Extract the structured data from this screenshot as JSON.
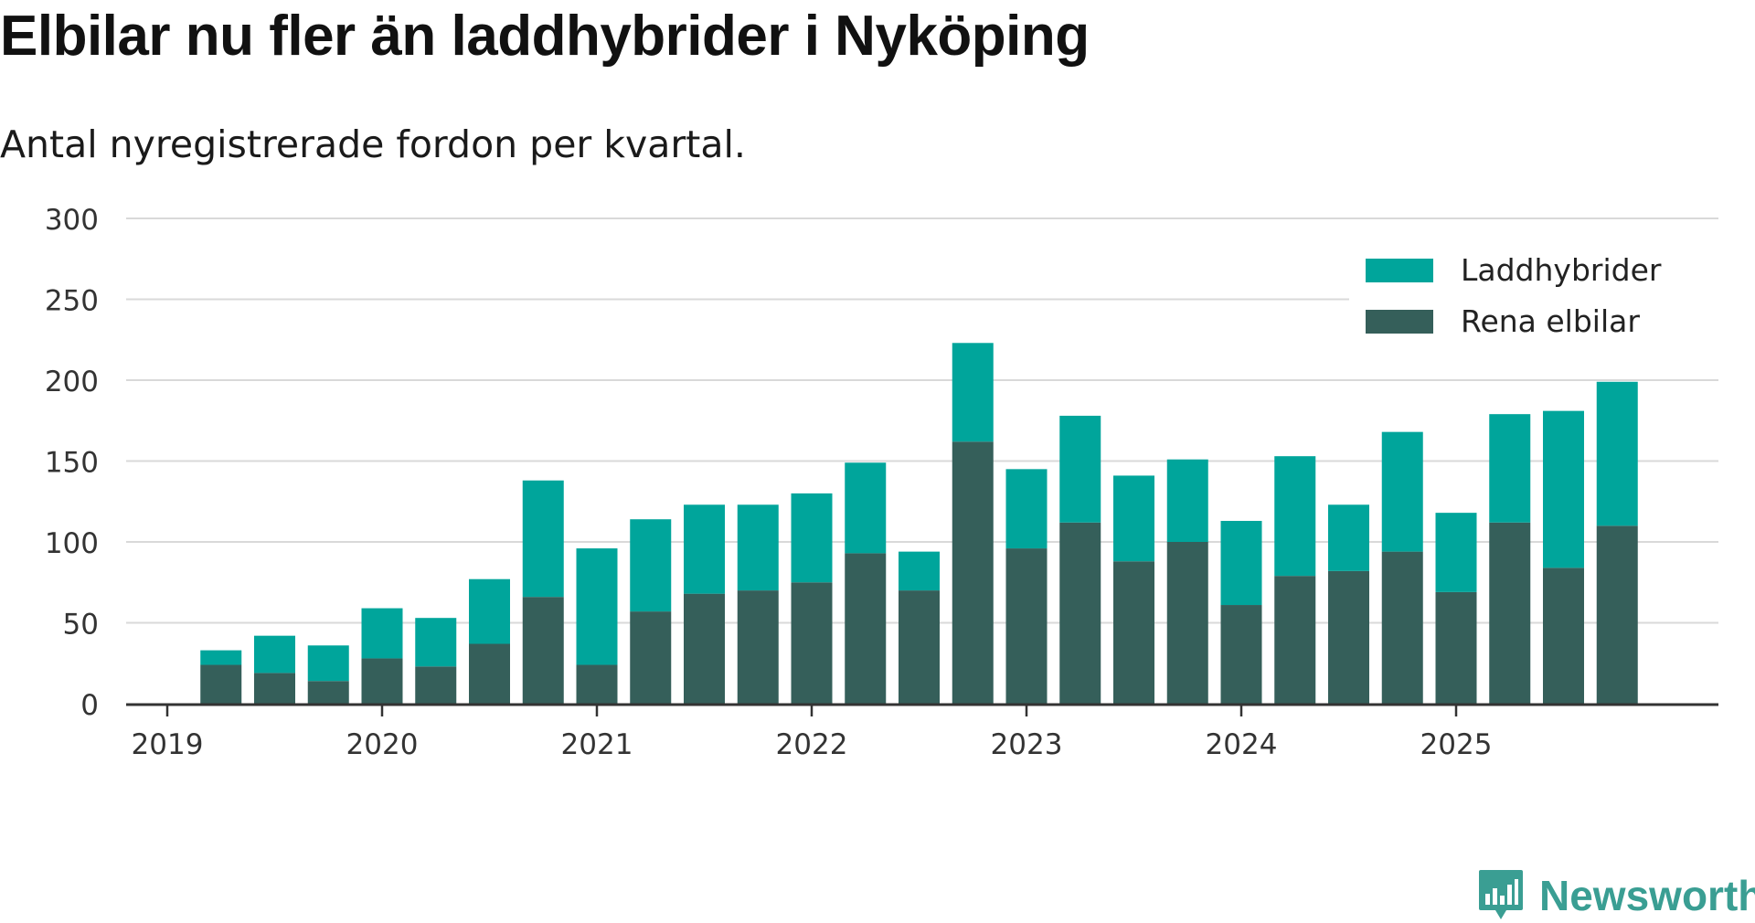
{
  "header": {
    "title": "Elbilar nu fler än laddhybrider i Nyköping",
    "subtitle": "Antal nyregistrerade fordon per kvartal."
  },
  "brand": {
    "name": "Newsworthy",
    "icon": "newsworthy-logo-icon"
  },
  "colors": {
    "plugin_hybrid": "#00a59b",
    "electric": "#355f5a",
    "grid": "#d9d9d9",
    "axis": "#333333"
  },
  "chart_data": {
    "type": "bar",
    "stacked": true,
    "title": "Elbilar nu fler än laddhybrider i Nyköping",
    "subtitle": "Antal nyregistrerade fordon per kvartal.",
    "xlabel": "",
    "ylabel": "",
    "ylim": [
      0,
      300
    ],
    "yticks": [
      0,
      50,
      100,
      150,
      200,
      250,
      300
    ],
    "grid": true,
    "legend_position": "top-right",
    "x_tick_labels": [
      "2019",
      "2020",
      "2021",
      "2022",
      "2023",
      "2024",
      "2025"
    ],
    "categories": [
      "2019 Q2",
      "2019 Q3",
      "2019 Q4",
      "2020 Q1",
      "2020 Q2",
      "2020 Q3",
      "2020 Q4",
      "2021 Q1",
      "2021 Q2",
      "2021 Q3",
      "2021 Q4",
      "2022 Q1",
      "2022 Q2",
      "2022 Q3",
      "2022 Q4",
      "2023 Q1",
      "2023 Q2",
      "2023 Q3",
      "2023 Q4",
      "2024 Q1",
      "2024 Q2",
      "2024 Q3",
      "2024 Q4",
      "2025 Q1",
      "2025 Q2",
      "2025 Q3",
      "2025 Q4"
    ],
    "series": [
      {
        "name": "Rena elbilar",
        "values": [
          24,
          19,
          14,
          28,
          23,
          37,
          66,
          24,
          57,
          68,
          70,
          75,
          93,
          70,
          162,
          96,
          112,
          88,
          100,
          61,
          79,
          82,
          94,
          69,
          112,
          84,
          110
        ]
      },
      {
        "name": "Laddhybrider",
        "values": [
          9,
          23,
          22,
          31,
          30,
          40,
          72,
          72,
          57,
          55,
          53,
          55,
          56,
          24,
          61,
          49,
          66,
          53,
          51,
          52,
          74,
          41,
          74,
          49,
          67,
          97,
          89
        ]
      }
    ],
    "legend": [
      "Laddhybrider",
      "Rena elbilar"
    ]
  }
}
